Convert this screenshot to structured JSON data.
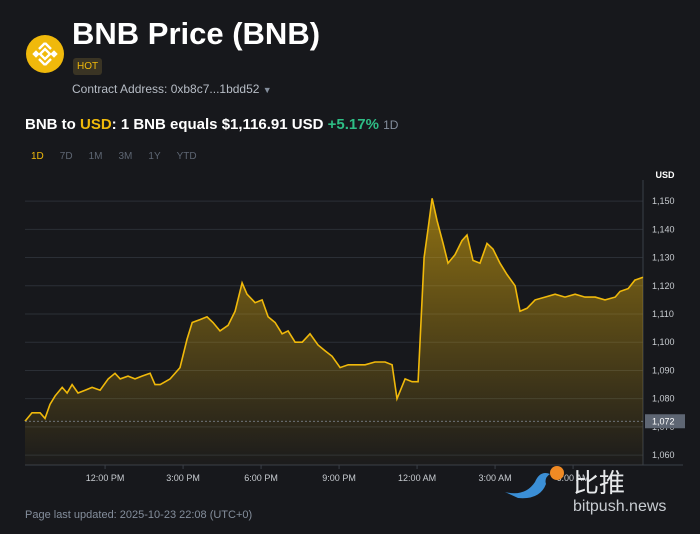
{
  "header": {
    "title": "BNB Price (BNB)",
    "badge": "HOT",
    "contract": "Contract Address: 0xb8c7...1bdd52"
  },
  "price_line": {
    "base": "BNB to",
    "quote": "USD",
    "equals": ": 1 BNB equals $1,116.91 USD",
    "change": "+5.17%",
    "period": "1D"
  },
  "timeframes": [
    "1D",
    "7D",
    "1M",
    "3M",
    "1Y",
    "YTD"
  ],
  "chart_data": {
    "type": "area",
    "y_unit": "USD",
    "color": "#f0b90b",
    "grid": true,
    "x": [
      8.92,
      9.19,
      9.5,
      9.69,
      9.88,
      10.08,
      10.35,
      10.54,
      10.73,
      10.96,
      11.23,
      11.5,
      11.81,
      12.12,
      12.38,
      12.58,
      12.88,
      13.15,
      13.42,
      13.73,
      13.92,
      14.12,
      14.5,
      14.88,
      15.15,
      15.35,
      15.65,
      15.92,
      16.15,
      16.42,
      16.73,
      17,
      17.27,
      17.46,
      17.77,
      18.04,
      18.27,
      18.54,
      18.81,
      19.04,
      19.31,
      19.58,
      19.88,
      20.19,
      20.46,
      20.73,
      21.04,
      21.35,
      21.62,
      22,
      22.38,
      22.77,
      23.04,
      23.23,
      23.54,
      23.81,
      24.04,
      24.27,
      24.42,
      24.58,
      24.77,
      25,
      25.19,
      25.46,
      25.73,
      25.92,
      26.15,
      26.42,
      26.69,
      26.92,
      27.19,
      27.46,
      27.77,
      27.96,
      28.23,
      28.54,
      28.92,
      29.31,
      29.69,
      30.08,
      30.46,
      30.85,
      31.23,
      31.62,
      31.81,
      32.12,
      32.38,
      32.69
    ],
    "values": [
      1072,
      1075,
      1075,
      1073,
      1078,
      1081,
      1084,
      1082,
      1085,
      1082,
      1083,
      1084,
      1083,
      1087,
      1089,
      1087,
      1088,
      1087,
      1088,
      1089,
      1085,
      1085,
      1087,
      1091,
      1101,
      1107,
      1108,
      1109,
      1107,
      1104,
      1106,
      1111,
      1121,
      1117,
      1114,
      1115,
      1109,
      1107,
      1103,
      1104,
      1100,
      1100,
      1103,
      1099,
      1097,
      1095,
      1091,
      1092,
      1092,
      1092,
      1093,
      1093,
      1092,
      1080,
      1087,
      1086,
      1086,
      1130,
      1140,
      1151,
      1143,
      1135,
      1128,
      1131,
      1136,
      1138,
      1129,
      1128,
      1135,
      1133,
      1128,
      1124,
      1120,
      1111,
      1112,
      1115,
      1116,
      1117,
      1116,
      1117,
      1116,
      1116,
      1115,
      1116,
      1118,
      1119,
      1122,
      1123
    ],
    "xlim": [
      8.92,
      32.69
    ],
    "xticks": [
      {
        "value": 12,
        "label": "12:00 PM"
      },
      {
        "value": 15,
        "label": "3:00 PM"
      },
      {
        "value": 18,
        "label": "6:00 PM"
      },
      {
        "value": 21,
        "label": "9:00 PM"
      },
      {
        "value": 24,
        "label": "12:00 AM"
      },
      {
        "value": 27,
        "label": "3:00 AM"
      },
      {
        "value": 30,
        "label": "6:00 AM"
      }
    ],
    "ylim": [
      1056.5,
      1155.7
    ],
    "yticks": [
      {
        "value": 1060,
        "label": "1,060"
      },
      {
        "value": 1070,
        "label": "1,070"
      },
      {
        "value": 1080,
        "label": "1,080"
      },
      {
        "value": 1090,
        "label": "1,090"
      },
      {
        "value": 1100,
        "label": "1,100"
      },
      {
        "value": 1110,
        "label": "1,110"
      },
      {
        "value": 1120,
        "label": "1,120"
      },
      {
        "value": 1130,
        "label": "1,130"
      },
      {
        "value": 1140,
        "label": "1,140"
      },
      {
        "value": 1150,
        "label": "1,150"
      }
    ],
    "price_marker": {
      "value": 1072,
      "label": "1,072"
    }
  },
  "watermark": {
    "cn": "比推",
    "site": "bitpush.news"
  },
  "footer": "Page last updated: 2025-10-23 22:08 (UTC+0)"
}
